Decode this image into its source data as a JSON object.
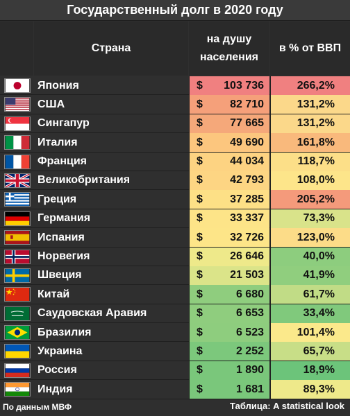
{
  "title": "Государственный долг в 2020 году",
  "headers": {
    "country": "Страна",
    "per_capita": "на душу населения",
    "gdp": "в % от ВВП"
  },
  "currency": "$",
  "rows": [
    {
      "flag": "japan-flag-icon",
      "country": "Япония",
      "per_capita": "103 736",
      "gdp": "266,2%",
      "pc_color": "#f08080",
      "gdp_color": "#f08080"
    },
    {
      "flag": "usa-flag-icon",
      "country": "США",
      "per_capita": "82 710",
      "gdp": "131,2%",
      "pc_color": "#f5a07a",
      "gdp_color": "#fbd88a"
    },
    {
      "flag": "singapore-flag-icon",
      "country": "Сингапур",
      "per_capita": "77 665",
      "gdp": "131,2%",
      "pc_color": "#f5a87a",
      "gdp_color": "#fbd88a"
    },
    {
      "flag": "italy-flag-icon",
      "country": "Италия",
      "per_capita": "49 690",
      "gdp": "161,8%",
      "pc_color": "#fcc67e",
      "gdp_color": "#f9b97c"
    },
    {
      "flag": "france-flag-icon",
      "country": "Франция",
      "per_capita": "44 034",
      "gdp": "118,7%",
      "pc_color": "#fdd382",
      "gdp_color": "#fcdf88"
    },
    {
      "flag": "uk-flag-icon",
      "country": "Великобритания",
      "per_capita": "42 793",
      "gdp": "108,0%",
      "pc_color": "#fdd583",
      "gdp_color": "#fde58a"
    },
    {
      "flag": "greece-flag-icon",
      "country": "Греция",
      "per_capita": "37 285",
      "gdp": "205,2%",
      "pc_color": "#fde086",
      "gdp_color": "#f49a7b"
    },
    {
      "flag": "germany-flag-icon",
      "country": "Германия",
      "per_capita": "33 337",
      "gdp": "73,3%",
      "pc_color": "#fde488",
      "gdp_color": "#d9e38a"
    },
    {
      "flag": "spain-flag-icon",
      "country": "Испания",
      "per_capita": "32 726",
      "gdp": "123,0%",
      "pc_color": "#fde588",
      "gdp_color": "#fcdc88"
    },
    {
      "flag": "norway-flag-icon",
      "country": "Норвегия",
      "per_capita": "26 646",
      "gdp": "40,0%",
      "pc_color": "#eee98a",
      "gdp_color": "#8dcd7e"
    },
    {
      "flag": "sweden-flag-icon",
      "country": "Швеция",
      "per_capita": "21 503",
      "gdp": "41,9%",
      "pc_color": "#dbe489",
      "gdp_color": "#90ce7e"
    },
    {
      "flag": "china-flag-icon",
      "country": "Китай",
      "per_capita": "6 680",
      "gdp": "61,7%",
      "pc_color": "#8fcd7e",
      "gdp_color": "#c1dc86"
    },
    {
      "flag": "saudi-flag-icon",
      "country": "Саудовская Аравия",
      "per_capita": "6 653",
      "gdp": "33,4%",
      "pc_color": "#8fcd7e",
      "gdp_color": "#80c97c"
    },
    {
      "flag": "brazil-flag-icon",
      "country": "Бразилия",
      "per_capita": "6 523",
      "gdp": "101,4%",
      "pc_color": "#8ecd7e",
      "gdp_color": "#fbe98b"
    },
    {
      "flag": "ukraine-flag-icon",
      "country": "Украина",
      "per_capita": "2 252",
      "gdp": "65,7%",
      "pc_color": "#7cc87c",
      "gdp_color": "#c8de87"
    },
    {
      "flag": "russia-flag-icon",
      "country": "Россия",
      "per_capita": "1 890",
      "gdp": "18,9%",
      "pc_color": "#7ac77b",
      "gdp_color": "#6cc47a"
    },
    {
      "flag": "india-flag-icon",
      "country": "Индия",
      "per_capita": "1 681",
      "gdp": "89,3%",
      "pc_color": "#7ac77b",
      "gdp_color": "#eee98a"
    }
  ],
  "footer": {
    "source": "По данным МВФ",
    "credit": "Таблица: A statistical look"
  }
}
